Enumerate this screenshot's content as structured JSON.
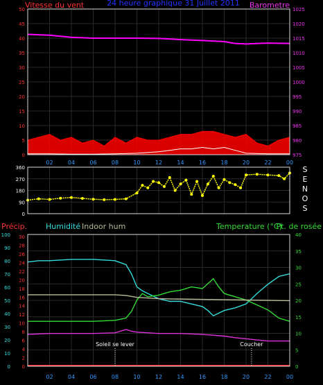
{
  "chart_data": [
    {
      "type": "line",
      "title": "24 heure graphique   31 Juillet 2011",
      "left_axis_label": "Vitesse du vent",
      "right_axis_label": "Barometre",
      "left_ticks": [
        0,
        5,
        10,
        15,
        20,
        25,
        30,
        35,
        40,
        45,
        50
      ],
      "right_ticks": [
        975,
        980,
        985,
        990,
        995,
        1000,
        1005,
        1010,
        1015,
        1020,
        1025
      ],
      "ylim_left": [
        0,
        50
      ],
      "ylim_right": [
        975,
        1025
      ],
      "x_ticks": [
        "02",
        "04",
        "06",
        "08",
        "10",
        "12",
        "14",
        "16",
        "18",
        "20",
        "22",
        "00"
      ],
      "xlim": [
        0,
        24
      ],
      "series": [
        {
          "name": "",
          "role": "pressure",
          "axis": "right",
          "color": "#ff00ff",
          "x": [
            0,
            2,
            4,
            6,
            8,
            10,
            12,
            14,
            16,
            18,
            19,
            20,
            22,
            24
          ],
          "y": [
            1016.3,
            1016.0,
            1015.3,
            1015.0,
            1015.0,
            1015.0,
            1014.9,
            1014.5,
            1014.2,
            1013.8,
            1013.2,
            1013.0,
            1013.3,
            1013.2
          ]
        },
        {
          "name": "",
          "role": "gust",
          "axis": "left",
          "color": "#ff0000",
          "x": [
            0,
            1,
            2,
            3,
            4,
            5,
            6,
            7,
            8,
            9,
            10,
            11,
            12,
            13,
            14,
            15,
            16,
            17,
            18,
            19,
            20,
            21,
            22,
            23,
            24
          ],
          "y": [
            5,
            6,
            7,
            5,
            6,
            4,
            5,
            3,
            6,
            4,
            6,
            5,
            5,
            6,
            7,
            7,
            8,
            8,
            7,
            6,
            7,
            4,
            3,
            5,
            6
          ]
        },
        {
          "name": "",
          "role": "wind",
          "axis": "left",
          "color": "#ffffff",
          "x": [
            0,
            2,
            4,
            6,
            8,
            10,
            12,
            13,
            14,
            15,
            16,
            17,
            18,
            19,
            20,
            22,
            24
          ],
          "y": [
            0.3,
            0.3,
            0.2,
            0.2,
            0.3,
            0.5,
            1,
            1.5,
            2,
            2,
            2.5,
            2,
            2.5,
            1.5,
            0.5,
            0.3,
            0.3
          ]
        }
      ]
    },
    {
      "type": "scatter",
      "left_ticks": [
        0,
        90,
        180,
        270,
        360
      ],
      "right_letters": [
        "S",
        "E",
        "N",
        "O",
        "S"
      ],
      "ylim": [
        0,
        360
      ],
      "x_ticks": [
        "02",
        "04",
        "06",
        "08",
        "10",
        "12",
        "14",
        "16",
        "18",
        "20",
        "22",
        "00"
      ],
      "xlim": [
        0,
        24
      ],
      "series": [
        {
          "name": "",
          "role": "direction",
          "color": "#ffff00",
          "x": [
            0,
            1,
            2,
            3,
            4,
            5,
            6,
            7,
            8,
            9,
            10,
            10.5,
            11,
            11.5,
            12,
            12.5,
            13,
            13.5,
            14,
            14.5,
            15,
            15.5,
            16,
            16.5,
            17,
            17.5,
            18,
            18.5,
            19,
            19.5,
            20,
            21,
            22,
            23,
            23.5,
            24
          ],
          "y": [
            105,
            115,
            110,
            120,
            125,
            118,
            112,
            108,
            110,
            115,
            160,
            220,
            200,
            250,
            240,
            210,
            280,
            180,
            230,
            260,
            150,
            250,
            140,
            230,
            290,
            200,
            265,
            240,
            225,
            200,
            300,
            305,
            300,
            295,
            270,
            315
          ]
        }
      ]
    },
    {
      "type": "line",
      "labels": {
        "precip": "Précip.",
        "humidity": "Humidité",
        "indoor_hum": "Indoor hum",
        "temperature": "Temperature (°C)",
        "dewpoint": "Pt. de rosée"
      },
      "precip_ticks": [
        0,
        2,
        4,
        6,
        8,
        10,
        12,
        14,
        16,
        18,
        20,
        22,
        24,
        26,
        28,
        30
      ],
      "humidity_ticks": [
        0,
        10,
        20,
        30,
        40,
        50,
        60,
        70,
        80,
        90,
        100
      ],
      "temperature_ticks": [
        0,
        5,
        10,
        15,
        20,
        25,
        30,
        35,
        40
      ],
      "ylim_temperature": [
        0,
        40
      ],
      "ylim_humidity": [
        0,
        100
      ],
      "x_ticks": [
        "02",
        "04",
        "06",
        "08",
        "10",
        "12",
        "14",
        "16",
        "18",
        "20",
        "22",
        "00"
      ],
      "xlim": [
        0,
        24
      ],
      "annotations": [
        {
          "text": "Soleil se lever",
          "x": 8
        },
        {
          "text": "Coucher",
          "x": 20.5
        }
      ],
      "series": [
        {
          "name": "",
          "role": "humidity",
          "axis": "humidity",
          "color": "#33dddd",
          "x": [
            0,
            1,
            2,
            4,
            6,
            8,
            9,
            9.5,
            10,
            10.5,
            11,
            12,
            13,
            14,
            15,
            16,
            16.5,
            17,
            18,
            19,
            20,
            21,
            22,
            23,
            24
          ],
          "y": [
            79,
            80,
            80,
            81,
            81,
            80,
            77,
            70,
            60,
            57,
            55,
            51,
            49,
            49,
            47,
            45,
            42,
            38,
            42,
            44,
            47,
            55,
            62,
            68,
            70
          ]
        },
        {
          "name": "",
          "role": "temperature",
          "axis": "temperature",
          "color": "#33dd33",
          "x": [
            0,
            2,
            4,
            6,
            8,
            9,
            9.5,
            10,
            10.5,
            11,
            12,
            13,
            14,
            15,
            16,
            16.5,
            17,
            17.5,
            18,
            19,
            20,
            21,
            22,
            23,
            24
          ],
          "y": [
            13.5,
            13.5,
            13.5,
            13.5,
            13.8,
            14.5,
            16.5,
            20,
            22,
            21,
            21.5,
            22.5,
            23,
            24,
            23.5,
            25,
            26.5,
            24,
            22,
            21,
            20,
            18.5,
            17,
            14.5,
            13.5
          ]
        },
        {
          "name": "",
          "role": "dewpoint",
          "axis": "temperature",
          "color": "#dd33dd",
          "x": [
            0,
            2,
            4,
            6,
            8,
            9,
            9.5,
            10,
            12,
            14,
            16,
            18,
            19,
            20,
            21,
            22,
            24
          ],
          "y": [
            9.5,
            9.8,
            9.8,
            9.8,
            10,
            11,
            10.5,
            10.2,
            9.8,
            9.8,
            9.5,
            9.0,
            8.5,
            8.2,
            7.8,
            7.5,
            7.5
          ]
        },
        {
          "name": "",
          "role": "indoor_hum",
          "axis": "humidity",
          "color": "#bbbb99",
          "x": [
            0,
            8,
            9,
            10,
            12,
            16,
            20,
            24
          ],
          "y": [
            54,
            54,
            53.5,
            52,
            51,
            50.5,
            50,
            49.5
          ]
        },
        {
          "name": "",
          "role": "precip",
          "axis": "precip",
          "color": "#ff3333",
          "x": [
            0,
            24
          ],
          "y": [
            0,
            0
          ]
        }
      ]
    }
  ]
}
